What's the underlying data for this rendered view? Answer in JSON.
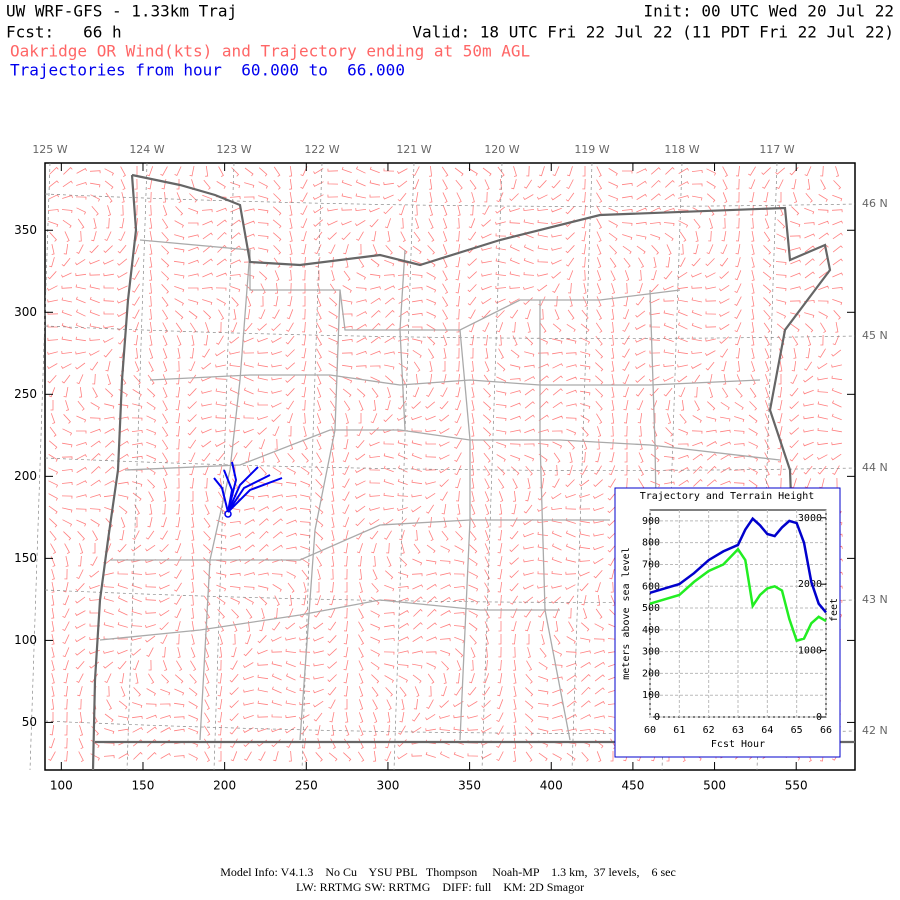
{
  "header": {
    "title_left": "UW WRF-GFS - 1.33km Traj",
    "forecast": "Fcst:   66 h",
    "init": "Init: 00 UTC Wed 20 Jul 22",
    "valid": "Valid: 18 UTC Fri 22 Jul 22 (11 PDT Fri 22 Jul 22)",
    "subtitle": "Oakridge OR Wind(kts) and Trajectory ending at 50m AGL",
    "traj_range": "Trajectories from hour  60.000 to  66.000"
  },
  "map": {
    "xlim": [
      90,
      586
    ],
    "ylim": [
      21,
      391
    ],
    "xticks": [
      100,
      150,
      200,
      250,
      300,
      350,
      400,
      450,
      500,
      550
    ],
    "yticks": [
      50,
      100,
      150,
      200,
      250,
      300,
      350
    ],
    "lon_labels": [
      "125 W",
      "124 W",
      "123 W",
      "122 W",
      "121 W",
      "120 W",
      "119 W",
      "118 W",
      "117 W"
    ],
    "lat_labels": [
      "46 N",
      "45 N",
      "44 N",
      "43 N",
      "42 N"
    ]
  },
  "chart_data": {
    "type": "line",
    "title": "Trajectory and Terrain Height",
    "x_label": "Fcst Hour",
    "y_label": "meters above sea level",
    "y2_label": "feet",
    "x": [
      60,
      60.5,
      61,
      61.5,
      62,
      62.5,
      63,
      63.25,
      63.5,
      63.75,
      64,
      64.25,
      64.5,
      64.75,
      65,
      65.25,
      65.5,
      65.75,
      66
    ],
    "series": [
      {
        "name": "Trajectory",
        "color": "#0000cc",
        "values": [
          570,
          590,
          610,
          660,
          720,
          760,
          790,
          860,
          910,
          880,
          840,
          830,
          870,
          900,
          890,
          800,
          620,
          520,
          480
        ]
      },
      {
        "name": "Terrain",
        "color": "#22ee22",
        "values": [
          520,
          540,
          560,
          620,
          670,
          700,
          770,
          720,
          510,
          560,
          590,
          600,
          580,
          450,
          350,
          360,
          430,
          460,
          440
        ]
      }
    ],
    "xlim": [
      60,
      66
    ],
    "xticks": [
      60,
      61,
      62,
      63,
      64,
      65,
      66
    ],
    "ylim": [
      0,
      950
    ],
    "yticks": [
      0,
      100,
      200,
      300,
      400,
      500,
      600,
      700,
      800,
      900
    ],
    "y2lim": [
      0,
      3117
    ],
    "y2ticks": [
      0,
      1000,
      2000,
      3000
    ],
    "grid": true
  },
  "footer": {
    "line1": "Model Info: V4.1.3    No Cu    YSU PBL   Thompson     Noah-MP    1.3 km,  37 levels,    6 sec",
    "line2": "LW: RRTMG SW: RRTMG    DIFF: full    KM: 2D Smagor"
  }
}
